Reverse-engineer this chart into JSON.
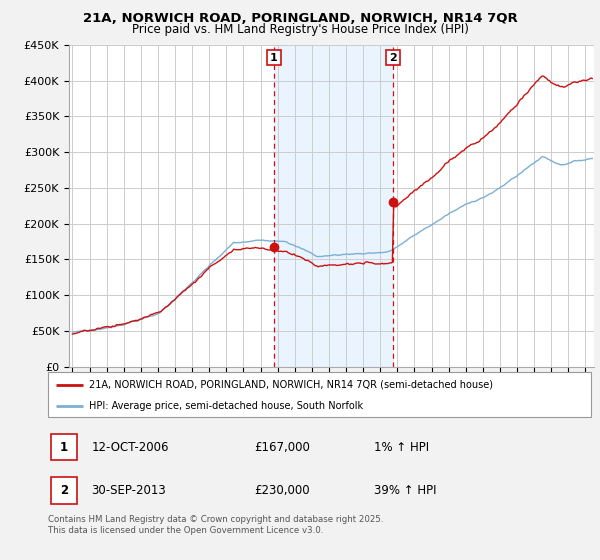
{
  "title_line1": "21A, NORWICH ROAD, PORINGLAND, NORWICH, NR14 7QR",
  "title_line2": "Price paid vs. HM Land Registry's House Price Index (HPI)",
  "background_color": "#f2f2f2",
  "plot_bg_color": "#ffffff",
  "grid_color": "#cccccc",
  "hpi_line_color": "#7bafd4",
  "price_line_color": "#cc1111",
  "ylim": [
    0,
    450000
  ],
  "yticks": [
    0,
    50000,
    100000,
    150000,
    200000,
    250000,
    300000,
    350000,
    400000,
    450000
  ],
  "ytick_labels": [
    "£0",
    "£50K",
    "£100K",
    "£150K",
    "£200K",
    "£250K",
    "£300K",
    "£350K",
    "£400K",
    "£450K"
  ],
  "sale1_date": 2006.78,
  "sale1_price": 167000,
  "sale2_date": 2013.75,
  "sale2_price": 230000,
  "shade_color": "#ddeeff",
  "shade_alpha": 0.6,
  "legend_line1": "21A, NORWICH ROAD, PORINGLAND, NORWICH, NR14 7QR (semi-detached house)",
  "legend_line2": "HPI: Average price, semi-detached house, South Norfolk",
  "table_row1": [
    "1",
    "12-OCT-2006",
    "£167,000",
    "1% ↑ HPI"
  ],
  "table_row2": [
    "2",
    "30-SEP-2013",
    "£230,000",
    "39% ↑ HPI"
  ],
  "footer": "Contains HM Land Registry data © Crown copyright and database right 2025.\nThis data is licensed under the Open Government Licence v3.0.",
  "xlim_start": 1994.8,
  "xlim_end": 2025.5
}
